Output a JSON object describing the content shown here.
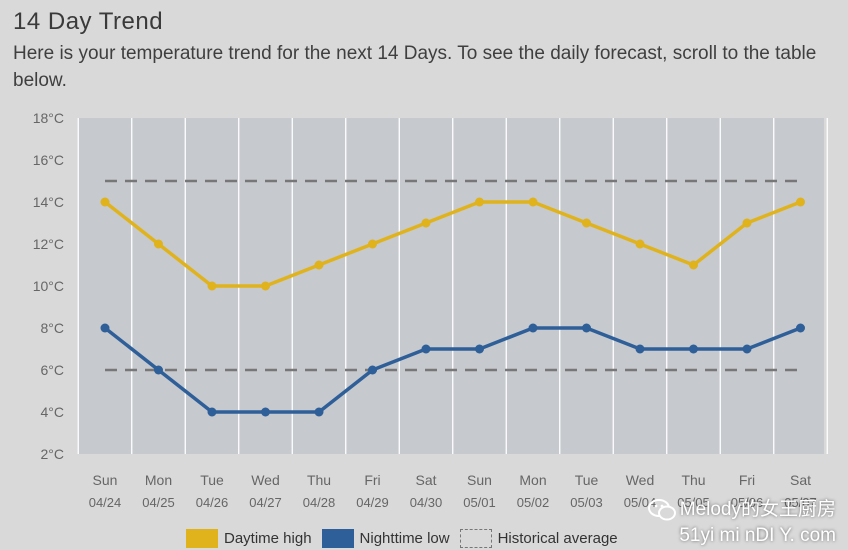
{
  "header": {
    "title": "14 Day Trend",
    "subtitle": "Here is your temperature trend for the next 14 Days. To see the daily forecast, scroll to the table below."
  },
  "legend": {
    "high_label": "Daytime high",
    "low_label": "Nighttime low",
    "hist_label": "Historical average"
  },
  "watermark": {
    "line1": "Melody的女王厨房",
    "line2": "51yi mi nDI Y. com"
  },
  "colors": {
    "high": "#e0b31c",
    "low": "#2f5f98",
    "plot_bg": "#c6c9ce",
    "hist": "#777777"
  },
  "chart_data": {
    "type": "line",
    "title": "",
    "xlabel": "",
    "ylabel": "",
    "ylim": [
      2,
      18
    ],
    "y_ticks": [
      "2°C",
      "4°C",
      "6°C",
      "8°C",
      "10°C",
      "12°C",
      "14°C",
      "16°C",
      "18°C"
    ],
    "grid": "vertical",
    "legend_position": "bottom",
    "categories_day": [
      "Sun",
      "Mon",
      "Tue",
      "Wed",
      "Thu",
      "Fri",
      "Sat",
      "Sun",
      "Mon",
      "Tue",
      "Wed",
      "Thu",
      "Fri",
      "Sat"
    ],
    "categories_date": [
      "04/24",
      "04/25",
      "04/26",
      "04/27",
      "04/28",
      "04/29",
      "04/30",
      "05/01",
      "05/02",
      "05/03",
      "05/04",
      "05/05",
      "05/06",
      "05/07"
    ],
    "series": [
      {
        "name": "Daytime high",
        "color": "#e0b31c",
        "values": [
          14,
          12,
          10,
          10,
          11,
          12,
          13,
          14,
          14,
          13,
          12,
          11,
          13,
          14
        ]
      },
      {
        "name": "Nighttime low",
        "color": "#2f5f98",
        "values": [
          8,
          6,
          4,
          4,
          4,
          6,
          7,
          7,
          8,
          8,
          7,
          7,
          7,
          8
        ]
      }
    ],
    "historical_average": [
      15,
      6
    ]
  }
}
